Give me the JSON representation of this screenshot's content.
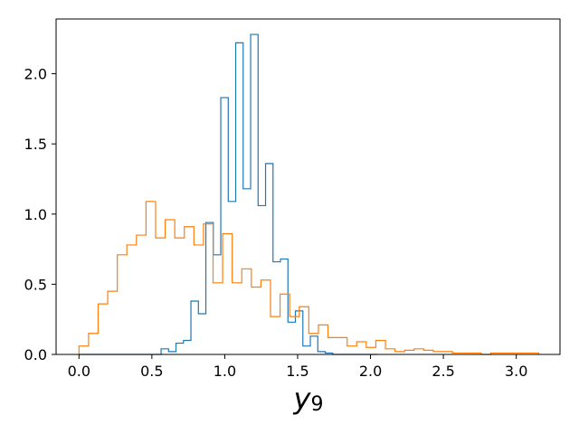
{
  "chart_data": {
    "type": "histogram",
    "xlabel": "y",
    "xlabel_subscript": "9",
    "xlim": [
      -0.157,
      3.3
    ],
    "ylim": [
      0,
      2.39
    ],
    "xticks": [
      0.0,
      0.5,
      1.0,
      1.5,
      2.0,
      2.5,
      3.0
    ],
    "xtick_labels": [
      "0.0",
      "0.5",
      "1.0",
      "1.5",
      "2.0",
      "2.5",
      "3.0"
    ],
    "yticks": [
      0.0,
      0.5,
      1.0,
      1.5,
      2.0
    ],
    "ytick_labels": [
      "0.0",
      "0.5",
      "1.0",
      "1.5",
      "2.0"
    ],
    "grid": false,
    "legend": "none",
    "series": [
      {
        "color": "#1f77b4",
        "edges": [
          0.0,
          0.0512,
          0.1024,
          0.1536,
          0.2048,
          0.256,
          0.3072,
          0.3584,
          0.4096,
          0.4608,
          0.512,
          0.5632,
          0.6144,
          0.6656,
          0.7168,
          0.768,
          0.8192,
          0.8704,
          0.9216,
          0.9728,
          1.024,
          1.0752,
          1.1264,
          1.1776,
          1.2288,
          1.28,
          1.3312,
          1.3824,
          1.4336,
          1.4848,
          1.536,
          1.5872,
          1.6384,
          1.6896,
          1.7408,
          1.792,
          1.8432,
          1.8944,
          1.9456,
          1.9968,
          2.048
        ],
        "values": [
          0,
          0,
          0,
          0,
          0,
          0,
          0,
          0,
          0,
          0,
          0,
          0.04,
          0.02,
          0.08,
          0.1,
          0.38,
          0.29,
          0.94,
          0.71,
          1.83,
          1.09,
          2.22,
          1.18,
          2.28,
          1.06,
          1.36,
          0.66,
          0.68,
          0.23,
          0.31,
          0.06,
          0.13,
          0.02,
          0.01,
          0,
          0,
          0,
          0,
          0,
          0
        ]
      },
      {
        "color": "#ff7f0e",
        "edges": [
          0.0,
          0.0657,
          0.1314,
          0.1971,
          0.2628,
          0.3285,
          0.3942,
          0.4599,
          0.5256,
          0.5913,
          0.657,
          0.7227,
          0.7884,
          0.8541,
          0.9198,
          0.9855,
          1.0512,
          1.1169,
          1.1826,
          1.2483,
          1.314,
          1.3797,
          1.4454,
          1.5111,
          1.5768,
          1.6425,
          1.7082,
          1.7739,
          1.8396,
          1.9053,
          1.971,
          2.0367,
          2.1024,
          2.1681,
          2.2338,
          2.2995,
          2.3652,
          2.4309,
          2.4966,
          2.5623,
          2.628,
          2.6937,
          2.7594,
          2.8251,
          2.8908,
          2.9565,
          3.0222,
          3.0879,
          3.1536
        ],
        "values": [
          0.06,
          0.15,
          0.36,
          0.45,
          0.71,
          0.78,
          0.85,
          1.09,
          0.83,
          0.96,
          0.83,
          0.91,
          0.78,
          0.93,
          0.51,
          0.86,
          0.51,
          0.61,
          0.48,
          0.53,
          0.27,
          0.43,
          0.27,
          0.34,
          0.15,
          0.21,
          0.12,
          0.12,
          0.06,
          0.09,
          0.05,
          0.1,
          0.04,
          0.02,
          0.03,
          0.04,
          0.03,
          0.02,
          0.02,
          0.01,
          0.01,
          0.01,
          0,
          0.01,
          0.01,
          0.01,
          0.01,
          0.01
        ]
      }
    ]
  }
}
